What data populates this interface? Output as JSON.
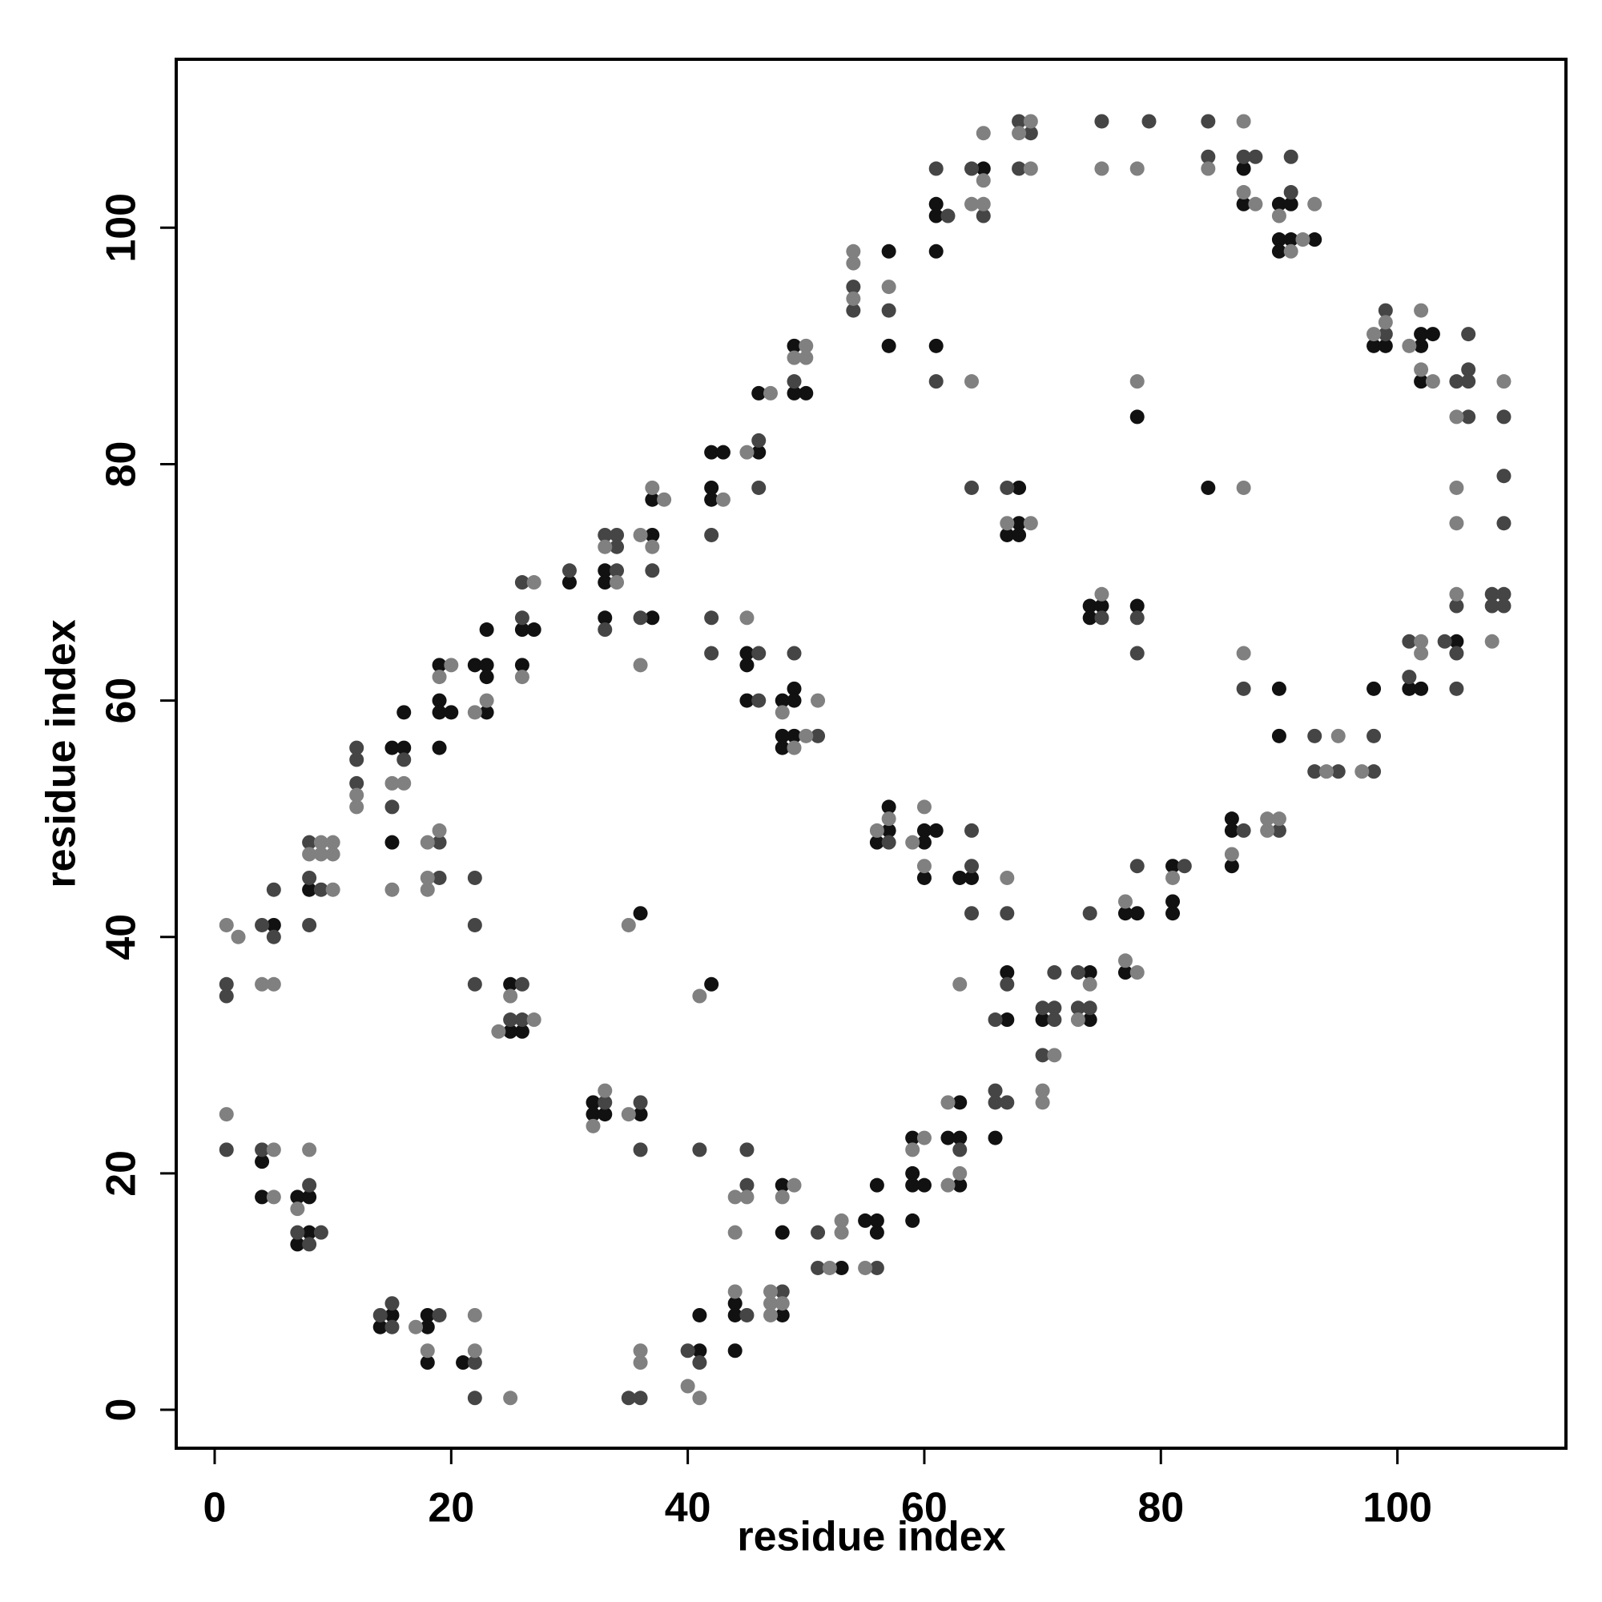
{
  "chart_data": {
    "type": "scatter",
    "xlabel": "residue index",
    "ylabel": "residue index",
    "xlim": [
      -3.25,
      114.25
    ],
    "ylim": [
      -3.25,
      114.25
    ],
    "xticks": [
      0,
      20,
      40,
      60,
      80,
      100
    ],
    "yticks": [
      0,
      20,
      40,
      60,
      80,
      100
    ],
    "grid": false,
    "series": [
      {
        "color": "#111111",
        "x": [
          5,
          8,
          15,
          15,
          16,
          16,
          19,
          19,
          19,
          19,
          20,
          22,
          23,
          23,
          23,
          23,
          25,
          25,
          26,
          26,
          26,
          27,
          30,
          32,
          32,
          33,
          33,
          33,
          33,
          36,
          36,
          37,
          37,
          37,
          42,
          42,
          42,
          43,
          42,
          45,
          45,
          45,
          46,
          46,
          48,
          48,
          48,
          49,
          49,
          49,
          49,
          50,
          49,
          57,
          57,
          56,
          57,
          57,
          60,
          60,
          60,
          61,
          61,
          61,
          61,
          61,
          63,
          64,
          65,
          67,
          68,
          68,
          68,
          74,
          74,
          75,
          78,
          78,
          84,
          87,
          87,
          90,
          90,
          90,
          91,
          91,
          93,
          90,
          90,
          98,
          99,
          102,
          102,
          102,
          103,
          105,
          101,
          102,
          98,
          86,
          86,
          86,
          81,
          81,
          81,
          77,
          77,
          78,
          74,
          74,
          70,
          67,
          67,
          66,
          62,
          63,
          63,
          63,
          59,
          59,
          59,
          59,
          60,
          55,
          56,
          56,
          56,
          53,
          48,
          48,
          44,
          44,
          44,
          48,
          41,
          41,
          14,
          15,
          18,
          18,
          18,
          21,
          4,
          4,
          7,
          7,
          8,
          8
        ],
        "values": [
          41,
          44,
          56,
          48,
          56,
          59,
          56,
          60,
          59,
          63,
          59,
          63,
          63,
          62,
          59,
          66,
          36,
          32,
          32,
          63,
          66,
          66,
          70,
          26,
          25,
          71,
          70,
          67,
          25,
          42,
          25,
          77,
          74,
          67,
          81,
          78,
          77,
          81,
          36,
          64,
          63,
          60,
          81,
          86,
          60,
          57,
          56,
          61,
          60,
          57,
          90,
          86,
          86,
          98,
          90,
          48,
          51,
          49,
          49,
          48,
          45,
          49,
          102,
          101,
          98,
          90,
          45,
          45,
          105,
          74,
          78,
          75,
          74,
          68,
          67,
          68,
          68,
          84,
          78,
          105,
          102,
          102,
          99,
          98,
          102,
          99,
          99,
          61,
          57,
          90,
          90,
          91,
          90,
          87,
          91,
          65,
          61,
          61,
          61,
          50,
          49,
          46,
          46,
          43,
          42,
          42,
          37,
          42,
          37,
          33,
          33,
          37,
          33,
          23,
          23,
          26,
          23,
          19,
          23,
          20,
          19,
          16,
          19,
          16,
          16,
          15,
          19,
          12,
          19,
          15,
          9,
          8,
          5,
          8,
          5,
          8,
          7,
          8,
          8,
          7,
          4,
          4,
          21,
          18,
          18,
          14,
          18,
          15
        ]
      },
      {
        "color": "#454545",
        "x": [
          1,
          1,
          4,
          5,
          5,
          8,
          8,
          8,
          9,
          12,
          12,
          12,
          15,
          16,
          19,
          19,
          22,
          22,
          22,
          25,
          26,
          26,
          26,
          26,
          30,
          33,
          33,
          33,
          34,
          34,
          34,
          36,
          36,
          36,
          37,
          42,
          42,
          42,
          41,
          46,
          46,
          46,
          46,
          49,
          49,
          51,
          54,
          54,
          57,
          57,
          61,
          61,
          62,
          64,
          64,
          64,
          64,
          64,
          65,
          67,
          67,
          68,
          68,
          69,
          75,
          78,
          78,
          75,
          79,
          84,
          84,
          87,
          88,
          87,
          87,
          91,
          91,
          99,
          99,
          105,
          106,
          106,
          106,
          106,
          109,
          109,
          109,
          105,
          105,
          105,
          108,
          108,
          109,
          109,
          101,
          101,
          104,
          98,
          98,
          93,
          93,
          95,
          90,
          82,
          78,
          73,
          73,
          74,
          74,
          70,
          70,
          71,
          71,
          71,
          66,
          66,
          66,
          67,
          67,
          63,
          51,
          51,
          56,
          45,
          45,
          45,
          48,
          40,
          41,
          35,
          36,
          14,
          15,
          15,
          19,
          22,
          22,
          1,
          4,
          7,
          8,
          8,
          9
        ],
        "values": [
          36,
          35,
          41,
          40,
          44,
          48,
          45,
          41,
          44,
          56,
          55,
          53,
          51,
          55,
          48,
          45,
          45,
          41,
          36,
          33,
          36,
          33,
          67,
          70,
          71,
          74,
          66,
          26,
          74,
          73,
          71,
          26,
          22,
          67,
          71,
          74,
          67,
          64,
          22,
          82,
          78,
          64,
          60,
          64,
          87,
          57,
          95,
          93,
          93,
          48,
          105,
          87,
          101,
          49,
          46,
          42,
          78,
          105,
          101,
          42,
          78,
          109,
          105,
          108,
          67,
          67,
          64,
          109,
          109,
          109,
          106,
          106,
          106,
          61,
          49,
          103,
          106,
          93,
          91,
          87,
          91,
          88,
          87,
          84,
          84,
          79,
          75,
          68,
          64,
          61,
          69,
          68,
          69,
          68,
          65,
          62,
          65,
          57,
          54,
          57,
          54,
          54,
          49,
          46,
          46,
          37,
          34,
          42,
          34,
          34,
          30,
          37,
          34,
          33,
          33,
          27,
          26,
          36,
          26,
          22,
          15,
          12,
          12,
          22,
          19,
          8,
          10,
          5,
          4,
          1,
          1,
          8,
          9,
          7,
          8,
          4,
          1,
          22,
          22,
          15,
          19,
          14,
          15
        ]
      },
      {
        "color": "#808080",
        "x": [
          1,
          2,
          4,
          5,
          8,
          9,
          9,
          10,
          10,
          10,
          12,
          12,
          15,
          15,
          16,
          18,
          18,
          18,
          19,
          19,
          20,
          22,
          23,
          24,
          25,
          26,
          27,
          27,
          32,
          33,
          33,
          34,
          35,
          35,
          36,
          36,
          37,
          37,
          38,
          43,
          41,
          45,
          45,
          47,
          48,
          49,
          49,
          50,
          50,
          50,
          51,
          54,
          54,
          54,
          57,
          56,
          57,
          59,
          60,
          60,
          64,
          64,
          65,
          65,
          65,
          63,
          67,
          67,
          69,
          68,
          69,
          69,
          75,
          78,
          75,
          78,
          84,
          87,
          87,
          88,
          87,
          87,
          90,
          91,
          92,
          93,
          98,
          99,
          101,
          102,
          102,
          103,
          105,
          109,
          105,
          105,
          105,
          108,
          102,
          102,
          97,
          94,
          95,
          86,
          89,
          89,
          90,
          81,
          77,
          77,
          78,
          73,
          74,
          70,
          70,
          71,
          62,
          62,
          63,
          59,
          60,
          55,
          53,
          53,
          52,
          44,
          44,
          45,
          48,
          49,
          44,
          47,
          47,
          47,
          48,
          40,
          41,
          36,
          36,
          17,
          18,
          22,
          22,
          25,
          1,
          5,
          5,
          7,
          8
        ],
        "values": [
          41,
          40,
          36,
          36,
          47,
          48,
          47,
          48,
          47,
          44,
          52,
          51,
          53,
          44,
          53,
          48,
          45,
          44,
          49,
          62,
          63,
          59,
          60,
          32,
          35,
          62,
          70,
          33,
          24,
          73,
          27,
          70,
          41,
          25,
          74,
          63,
          78,
          73,
          77,
          77,
          35,
          81,
          67,
          86,
          59,
          56,
          89,
          90,
          89,
          57,
          60,
          98,
          97,
          94,
          95,
          49,
          50,
          48,
          51,
          46,
          87,
          102,
          104,
          102,
          108,
          36,
          45,
          75,
          75,
          108,
          109,
          105,
          69,
          87,
          105,
          105,
          105,
          109,
          103,
          102,
          78,
          64,
          101,
          98,
          99,
          102,
          91,
          92,
          90,
          93,
          88,
          87,
          84,
          87,
          78,
          75,
          69,
          65,
          65,
          64,
          54,
          54,
          57,
          47,
          50,
          49,
          50,
          45,
          43,
          38,
          37,
          33,
          36,
          27,
          26,
          30,
          26,
          19,
          20,
          22,
          23,
          12,
          16,
          15,
          12,
          18,
          15,
          18,
          18,
          19,
          10,
          10,
          9,
          8,
          9,
          2,
          1,
          5,
          4,
          7,
          5,
          8,
          5,
          1,
          25,
          22,
          18,
          17,
          22
        ]
      }
    ]
  }
}
